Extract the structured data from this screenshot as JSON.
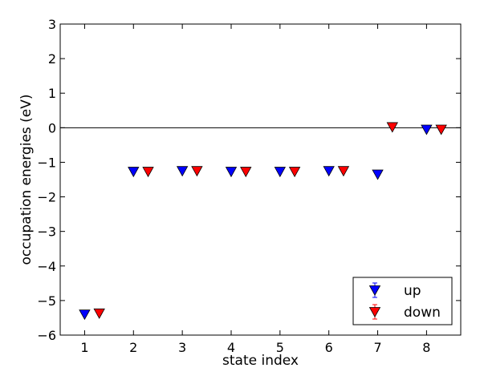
{
  "chart_data": {
    "type": "scatter",
    "title": "",
    "xlabel": "state index",
    "ylabel": "occupation energies (eV)",
    "xlim": [
      0.5,
      8.7
    ],
    "ylim": [
      -6,
      3
    ],
    "xticks": [
      "1",
      "2",
      "3",
      "4",
      "5",
      "6",
      "7",
      "8"
    ],
    "yticks": [
      "3",
      "2",
      "1",
      "0",
      "−1",
      "−2",
      "−3",
      "−4",
      "−5",
      "−6"
    ],
    "reference_line_y": 0,
    "legend_position": "lower-right",
    "marker": "downward-triangle",
    "series": [
      {
        "name": "up",
        "color": "#0000ff",
        "x": [
          1,
          2,
          3,
          4,
          5,
          6,
          7,
          8
        ],
        "y": [
          -5.4,
          -1.27,
          -1.25,
          -1.27,
          -1.27,
          -1.25,
          -1.35,
          -0.05
        ]
      },
      {
        "name": "down",
        "color": "#ff0000",
        "x": [
          1.3,
          2.3,
          3.3,
          4.3,
          5.3,
          6.3,
          7.3,
          8.3
        ],
        "y": [
          -5.37,
          -1.27,
          -1.25,
          -1.27,
          -1.27,
          -1.25,
          0.02,
          -0.05
        ]
      }
    ]
  }
}
